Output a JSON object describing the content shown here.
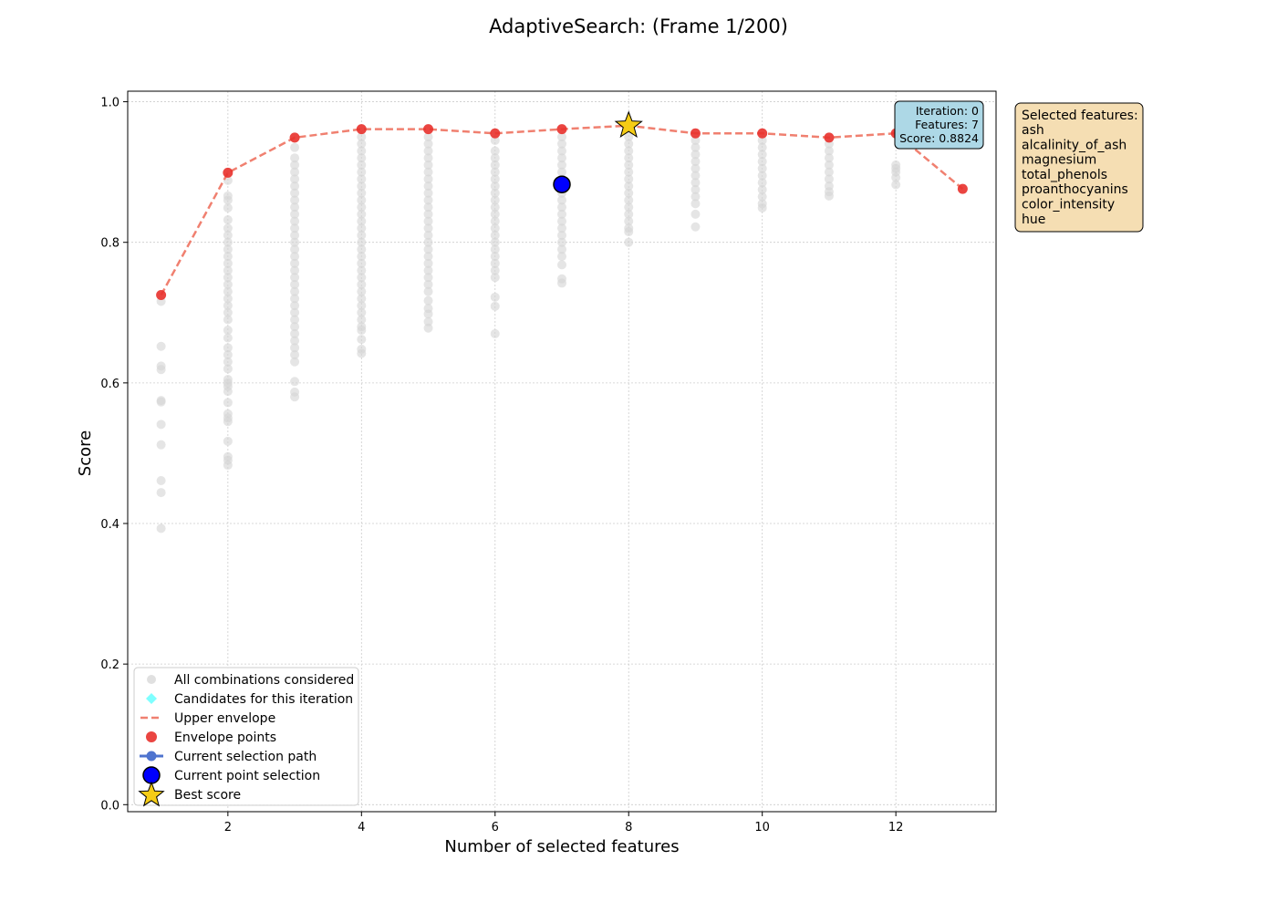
{
  "chart_data": {
    "type": "scatter",
    "title": "AdaptiveSearch: (Frame 1/200)",
    "xlabel": "Number of selected features",
    "ylabel": "Score",
    "xlim": [
      0.5,
      13.5
    ],
    "ylim": [
      -0.01,
      1.015
    ],
    "xticks": [
      2,
      4,
      6,
      8,
      10,
      12
    ],
    "yticks": [
      0.0,
      0.2,
      0.4,
      0.6,
      0.8,
      1.0
    ],
    "grid": true,
    "legend_position": "lower-left",
    "colors": {
      "all_points": "#d3d3d3",
      "candidates": "#7fffff",
      "envelope_line": "#f08070",
      "envelope_points": "#e8312c",
      "path": "#4f74cf",
      "current_point": "#0000ff",
      "best": "#f5cc15",
      "iteration_box": "#add8e6",
      "features_box": "#f5deb3"
    },
    "legend": [
      {
        "label": "All combinations considered",
        "marker": "grey-dot"
      },
      {
        "label": "Candidates for this iteration",
        "marker": "cyan-diamond"
      },
      {
        "label": "Upper envelope",
        "marker": "dashed-line"
      },
      {
        "label": "Envelope points",
        "marker": "red-dot"
      },
      {
        "label": "Current selection path",
        "marker": "blue-line-dot"
      },
      {
        "label": "Current point selection",
        "marker": "blue-big-dot"
      },
      {
        "label": "Best score",
        "marker": "star"
      }
    ],
    "envelope": {
      "name": "Upper envelope",
      "x": [
        1,
        2,
        3,
        4,
        5,
        6,
        7,
        8,
        9,
        10,
        11,
        12,
        13
      ],
      "y": [
        0.725,
        0.899,
        0.949,
        0.961,
        0.961,
        0.955,
        0.961,
        0.966,
        0.955,
        0.955,
        0.949,
        0.955,
        0.876
      ]
    },
    "all_combinations": {
      "name": "All combinations considered",
      "groups": [
        {
          "x": 1,
          "y": [
            0.716,
            0.652,
            0.624,
            0.619,
            0.575,
            0.573,
            0.541,
            0.512,
            0.461,
            0.444,
            0.393
          ]
        },
        {
          "x": 2,
          "y": [
            0.888,
            0.866,
            0.86,
            0.849,
            0.832,
            0.82,
            0.81,
            0.8,
            0.79,
            0.78,
            0.77,
            0.76,
            0.75,
            0.74,
            0.73,
            0.72,
            0.71,
            0.7,
            0.69,
            0.675,
            0.664,
            0.65,
            0.64,
            0.63,
            0.62,
            0.605,
            0.6,
            0.595,
            0.588,
            0.572,
            0.556,
            0.55,
            0.545,
            0.517,
            0.495,
            0.49,
            0.483
          ]
        },
        {
          "x": 3,
          "y": [
            0.935,
            0.92,
            0.91,
            0.9,
            0.89,
            0.88,
            0.87,
            0.86,
            0.85,
            0.84,
            0.83,
            0.82,
            0.81,
            0.8,
            0.79,
            0.78,
            0.77,
            0.76,
            0.75,
            0.74,
            0.73,
            0.72,
            0.71,
            0.7,
            0.69,
            0.68,
            0.67,
            0.66,
            0.65,
            0.64,
            0.63,
            0.602,
            0.587,
            0.58
          ]
        },
        {
          "x": 4,
          "y": [
            0.95,
            0.94,
            0.93,
            0.92,
            0.91,
            0.9,
            0.89,
            0.88,
            0.87,
            0.86,
            0.85,
            0.84,
            0.83,
            0.82,
            0.81,
            0.8,
            0.79,
            0.78,
            0.77,
            0.76,
            0.75,
            0.74,
            0.73,
            0.72,
            0.71,
            0.7,
            0.69,
            0.68,
            0.675,
            0.662,
            0.648,
            0.642
          ]
        },
        {
          "x": 5,
          "y": [
            0.95,
            0.94,
            0.93,
            0.92,
            0.91,
            0.9,
            0.89,
            0.88,
            0.87,
            0.86,
            0.85,
            0.84,
            0.83,
            0.82,
            0.81,
            0.8,
            0.79,
            0.78,
            0.77,
            0.76,
            0.75,
            0.74,
            0.73,
            0.717,
            0.706,
            0.698,
            0.687,
            0.678
          ]
        },
        {
          "x": 6,
          "y": [
            0.945,
            0.93,
            0.92,
            0.91,
            0.9,
            0.89,
            0.88,
            0.87,
            0.86,
            0.85,
            0.84,
            0.83,
            0.82,
            0.81,
            0.8,
            0.79,
            0.78,
            0.77,
            0.76,
            0.75,
            0.722,
            0.709,
            0.67
          ]
        },
        {
          "x": 7,
          "y": [
            0.95,
            0.94,
            0.93,
            0.92,
            0.91,
            0.9,
            0.89,
            0.87,
            0.86,
            0.85,
            0.84,
            0.83,
            0.82,
            0.81,
            0.8,
            0.79,
            0.78,
            0.768,
            0.748,
            0.742
          ]
        },
        {
          "x": 8,
          "y": [
            0.95,
            0.94,
            0.93,
            0.92,
            0.91,
            0.9,
            0.89,
            0.88,
            0.87,
            0.86,
            0.85,
            0.84,
            0.83,
            0.82,
            0.815,
            0.8
          ]
        },
        {
          "x": 9,
          "y": [
            0.945,
            0.935,
            0.925,
            0.915,
            0.905,
            0.895,
            0.885,
            0.875,
            0.865,
            0.855,
            0.84,
            0.822
          ]
        },
        {
          "x": 10,
          "y": [
            0.945,
            0.935,
            0.925,
            0.915,
            0.905,
            0.895,
            0.885,
            0.875,
            0.865,
            0.855,
            0.849
          ]
        },
        {
          "x": 11,
          "y": [
            0.94,
            0.93,
            0.92,
            0.91,
            0.9,
            0.89,
            0.88,
            0.872,
            0.866
          ]
        },
        {
          "x": 12,
          "y": [
            0.91,
            0.905,
            0.9,
            0.892,
            0.882
          ]
        }
      ]
    },
    "current_point": {
      "name": "Current point selection",
      "x": 7,
      "y": 0.8824
    },
    "best_score": {
      "name": "Best score",
      "x": 8,
      "y": 0.966
    },
    "iteration_box": {
      "iteration": "Iteration: 0",
      "features": "Features: 7",
      "score": "Score: 0.8824"
    },
    "selected_features": {
      "header": "Selected features:",
      "items": [
        "ash",
        "alcalinity_of_ash",
        "magnesium",
        "total_phenols",
        "proanthocyanins",
        "color_intensity",
        "hue"
      ]
    }
  }
}
